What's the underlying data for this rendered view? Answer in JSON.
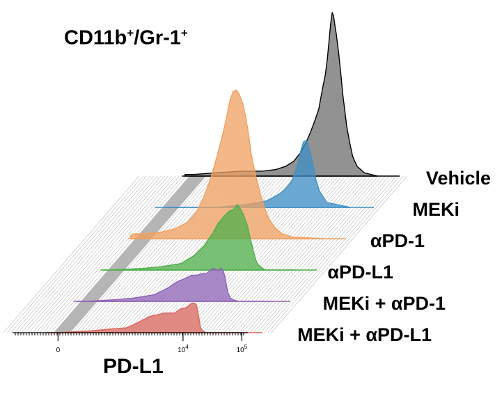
{
  "chart_data": {
    "type": "area",
    "title_main": "CD11b",
    "title_sup1": "+",
    "title_mid": "/Gr-1",
    "title_sup2": "+",
    "xlabel": "PD-L1",
    "x_scale": "biexponential",
    "x_ticks": [
      {
        "label": "0",
        "value": 0
      },
      {
        "label": "10",
        "sup": "4",
        "value": 10000
      },
      {
        "label": "10",
        "sup": "5",
        "value": 100000
      }
    ],
    "series": [
      {
        "name": "Vehicle",
        "color": "#6e6e6e",
        "x": [
          -300,
          0,
          300,
          1000,
          2000,
          3000,
          4000,
          5000,
          6000,
          7000,
          8000,
          9000,
          10000,
          11000,
          12000,
          13000,
          14000,
          15000,
          16000,
          17000,
          18000,
          19000,
          20000,
          22000,
          24000,
          26000,
          28000,
          30000,
          34000,
          38000,
          45000,
          60000,
          100000
        ],
        "y": [
          1,
          1,
          2,
          3,
          3,
          4,
          6,
          9,
          14,
          20,
          27,
          34,
          41,
          49,
          56,
          62,
          71,
          82,
          93,
          100,
          98,
          92,
          87,
          75,
          62,
          49,
          40,
          31,
          20,
          12,
          6,
          2,
          0
        ]
      },
      {
        "name": "MEKi",
        "color": "#3d8fc6",
        "x": [
          0,
          1000,
          2000,
          3000,
          4000,
          5000,
          6000,
          7000,
          8000,
          9000,
          10000,
          11000,
          12000,
          13000,
          14000,
          16000,
          18000,
          20000,
          22000,
          24000,
          26000,
          30000,
          40000,
          100000
        ],
        "y": [
          0,
          0,
          1,
          2,
          3,
          4,
          6,
          8,
          10,
          13,
          16,
          20,
          23,
          27,
          33,
          40,
          41,
          36,
          30,
          24,
          17,
          10,
          3,
          0
        ]
      },
      {
        "name": "αPD-1",
        "color": "#f0a060",
        "x": [
          -300,
          -150,
          0,
          300,
          600,
          1000,
          1400,
          1800,
          2200,
          2600,
          3000,
          3400,
          3800,
          4200,
          4600,
          5000,
          5500,
          6000,
          6500,
          7000,
          8000,
          9000,
          10000,
          12000,
          15000,
          20000,
          30000,
          100000
        ],
        "y": [
          2,
          3,
          3,
          4,
          6,
          10,
          17,
          27,
          38,
          50,
          61,
          72,
          84,
          90,
          91,
          88,
          83,
          74,
          63,
          51,
          37,
          27,
          19,
          12,
          7,
          3,
          1,
          0
        ]
      },
      {
        "name": "αPD-L1",
        "color": "#4daf4a",
        "x": [
          -300,
          0,
          500,
          1000,
          2000,
          3000,
          4000,
          5000,
          6000,
          7000,
          8000,
          9000,
          10000,
          11000,
          12000,
          13000,
          14000,
          15000,
          16000,
          18000,
          20000,
          22000,
          25000,
          30000,
          100000
        ],
        "y": [
          0,
          0,
          1,
          2,
          4,
          9,
          15,
          22,
          29,
          33,
          36,
          37,
          40,
          38,
          36,
          33,
          30,
          27,
          22,
          15,
          8,
          4,
          2,
          0,
          0
        ]
      },
      {
        "name": "MEKi + αPD-1",
        "color": "#8e63b5",
        "x": [
          -300,
          0,
          500,
          1000,
          2000,
          3000,
          4000,
          5000,
          6000,
          7000,
          8000,
          9000,
          10000,
          11000,
          12000,
          13000,
          14000,
          15000,
          16000,
          17000,
          18000,
          19000,
          20000,
          22000,
          25000,
          30000,
          100000
        ],
        "y": [
          0,
          0,
          1,
          2,
          4,
          8,
          12,
          14,
          16,
          16,
          17,
          17,
          19,
          20,
          20,
          19,
          19,
          20,
          20,
          18,
          15,
          10,
          6,
          2,
          1,
          0,
          0
        ]
      },
      {
        "name": "MEKi + αPD-L1",
        "color": "#d9655d",
        "x": [
          -300,
          0,
          500,
          1000,
          2000,
          2500,
          3000,
          4000,
          5000,
          6000,
          7000,
          8000,
          9000,
          10000,
          11000,
          12000,
          13000,
          14000,
          15000,
          16000,
          17000,
          18000,
          19000,
          20000,
          22000,
          25000,
          100000
        ],
        "y": [
          0,
          0,
          1,
          2,
          3,
          5,
          7,
          10,
          11,
          12,
          12,
          12,
          14,
          15,
          15,
          16,
          17,
          18,
          18,
          18,
          17,
          13,
          8,
          3,
          1,
          0,
          0
        ]
      }
    ]
  }
}
